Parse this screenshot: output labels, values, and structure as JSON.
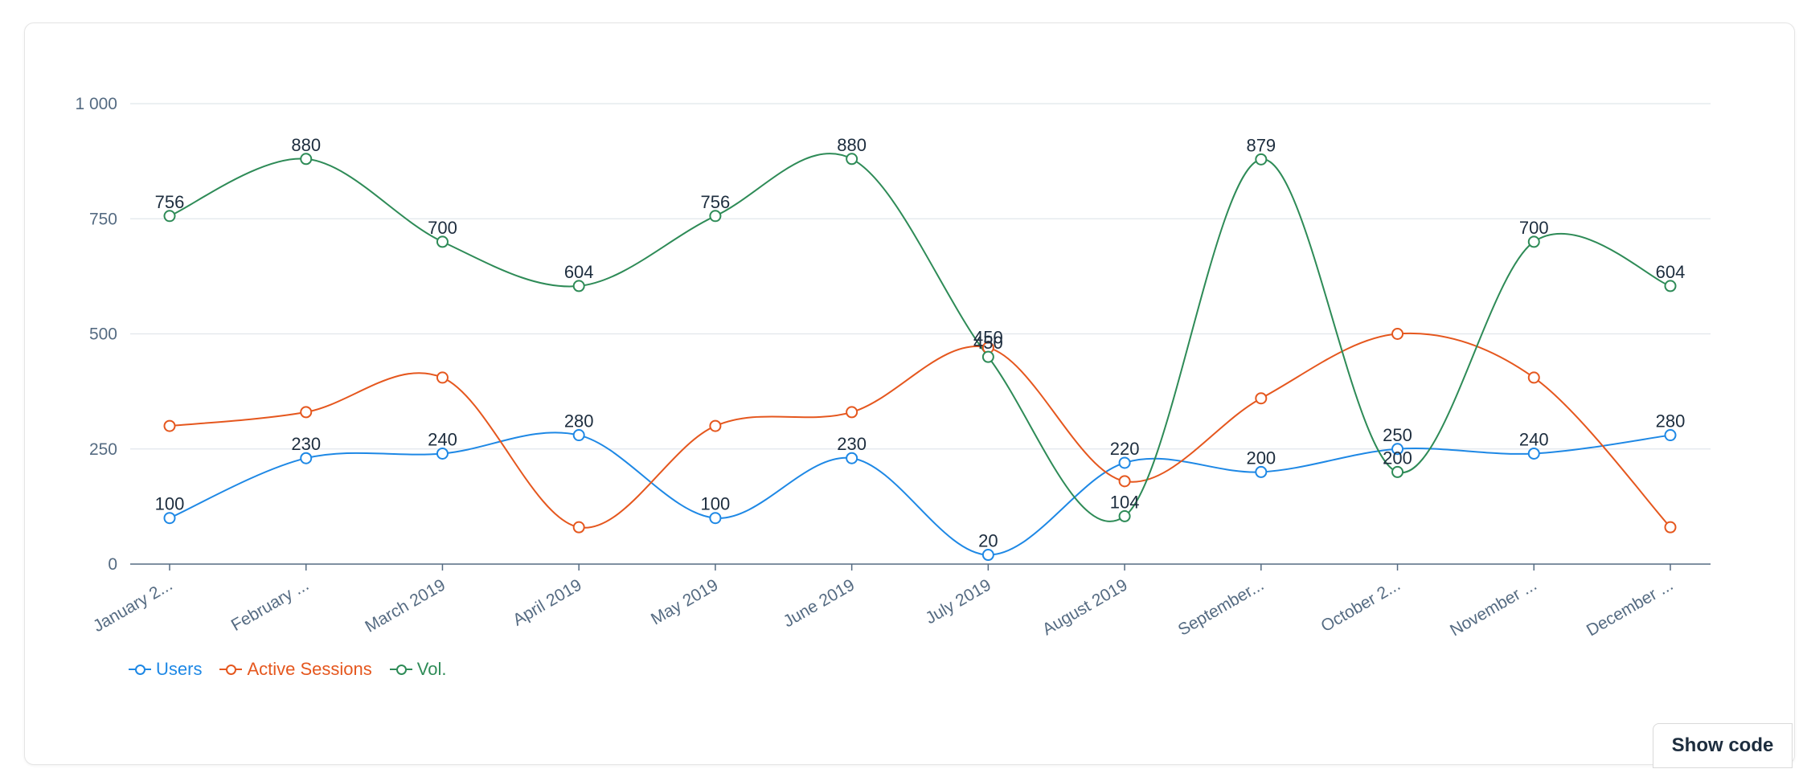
{
  "chart_data": {
    "type": "line",
    "categories_full": [
      "January 2019",
      "February 2019",
      "March 2019",
      "April 2019",
      "May 2019",
      "June 2019",
      "July 2019",
      "August 2019",
      "September 2019",
      "October 2019",
      "November 2019",
      "December 2019"
    ],
    "categories": [
      "January 2...",
      "February ...",
      "March 2019",
      "April 2019",
      "May 2019",
      "June 2019",
      "July 2019",
      "August 2019",
      "September...",
      "October 2...",
      "November ...",
      "December ..."
    ],
    "yticks": [
      0,
      250,
      500,
      750,
      1000
    ],
    "ytick_labels": [
      "0",
      "250",
      "500",
      "750",
      "1 000"
    ],
    "ylim": [
      0,
      1000
    ],
    "grid": true,
    "legend_position": "bottom-left",
    "series": [
      {
        "name": "Users",
        "color": "#1e88e5",
        "values": [
          100,
          230,
          240,
          280,
          100,
          230,
          20,
          220,
          200,
          250,
          240,
          280
        ],
        "labels": true
      },
      {
        "name": "Active Sessions",
        "color": "#e5571e",
        "values": [
          300,
          330,
          405,
          80,
          300,
          330,
          470,
          180,
          360,
          500,
          405,
          80
        ],
        "labels": false
      },
      {
        "name": "Vol.",
        "color": "#2e8b57",
        "values": [
          756,
          880,
          700,
          604,
          756,
          880,
          450,
          104,
          879,
          200,
          700,
          604
        ],
        "labels": true
      }
    ]
  },
  "legend": {
    "users": "Users",
    "sessions": "Active Sessions",
    "vol": "Vol."
  },
  "show_code_label": "Show code"
}
